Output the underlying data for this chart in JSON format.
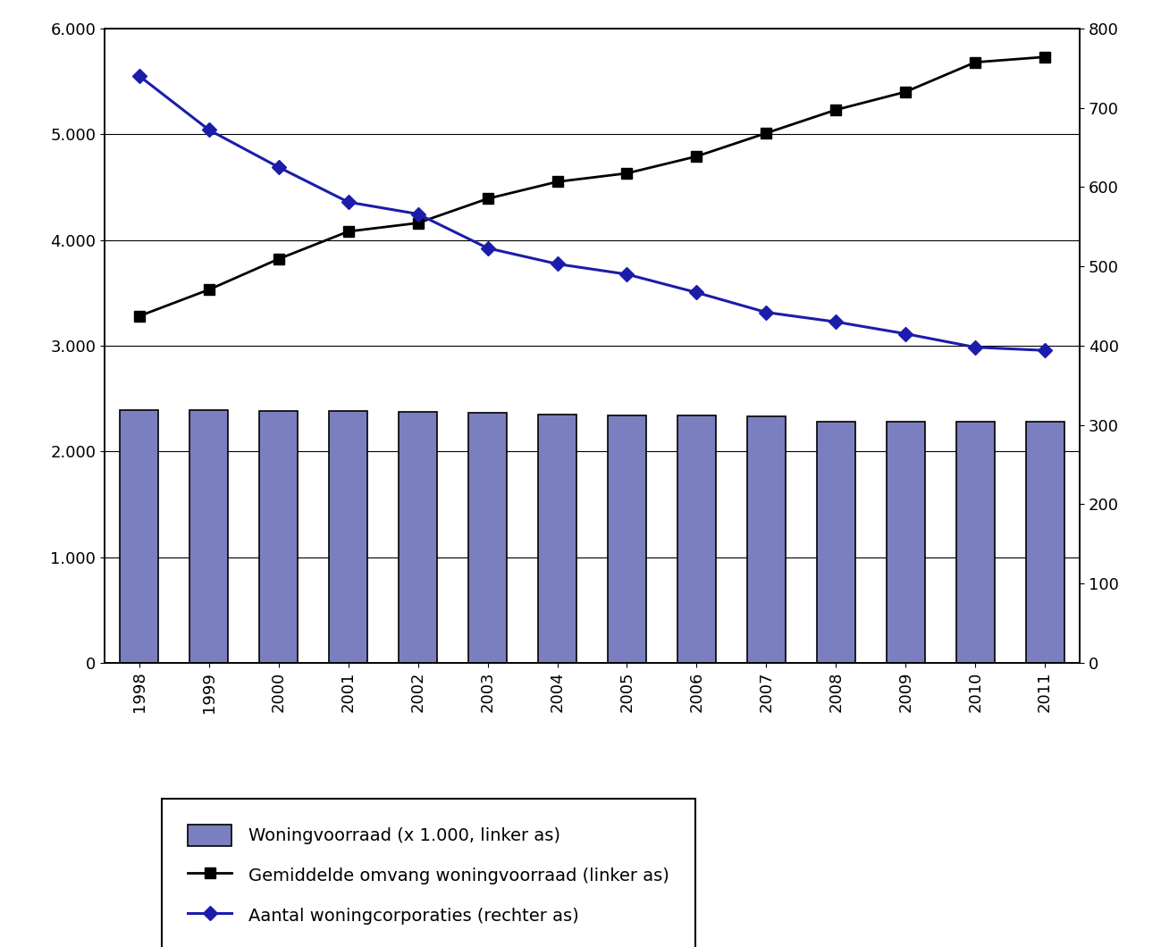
{
  "years": [
    1998,
    1999,
    2000,
    2001,
    2002,
    2003,
    2004,
    2005,
    2006,
    2007,
    2008,
    2009,
    2010,
    2011
  ],
  "woningvoorraad": [
    2390,
    2388,
    2385,
    2380,
    2378,
    2363,
    2352,
    2338,
    2338,
    2328,
    2283,
    2283,
    2283,
    2280
  ],
  "gemiddelde_omvang": [
    3280,
    3530,
    3820,
    4080,
    4160,
    4390,
    4550,
    4630,
    4790,
    5010,
    5230,
    5400,
    5680,
    5730
  ],
  "aantal_corporaties": [
    740,
    672,
    625,
    581,
    566,
    523,
    503,
    490,
    467,
    442,
    430,
    415,
    398,
    394
  ],
  "bar_color": "#7b7fbf",
  "bar_edge_color": "#000000",
  "line1_color": "#000000",
  "line2_color": "#1c1caa",
  "ylim_left": [
    0,
    6000
  ],
  "ylim_right": [
    0,
    800
  ],
  "yticks_left": [
    0,
    1000,
    2000,
    3000,
    4000,
    5000,
    6000
  ],
  "ytick_labels_left": [
    "0",
    "1.000",
    "2.000",
    "3.000",
    "4.000",
    "5.000",
    "6.000"
  ],
  "yticks_right": [
    0,
    100,
    200,
    300,
    400,
    500,
    600,
    700,
    800
  ],
  "ytick_labels_right": [
    "0",
    "100",
    "200",
    "300",
    "400",
    "500",
    "600",
    "700",
    "800"
  ],
  "legend_labels": [
    "Woningvoorraad (x 1.000, linker as)",
    "Gemiddelde omvang woningvoorraad (linker as)",
    "Aantal woningcorporaties (rechter as)"
  ],
  "background_color": "#ffffff",
  "grid_color": "#000000",
  "tick_fontsize": 13,
  "legend_fontsize": 14,
  "bar_width": 0.55
}
